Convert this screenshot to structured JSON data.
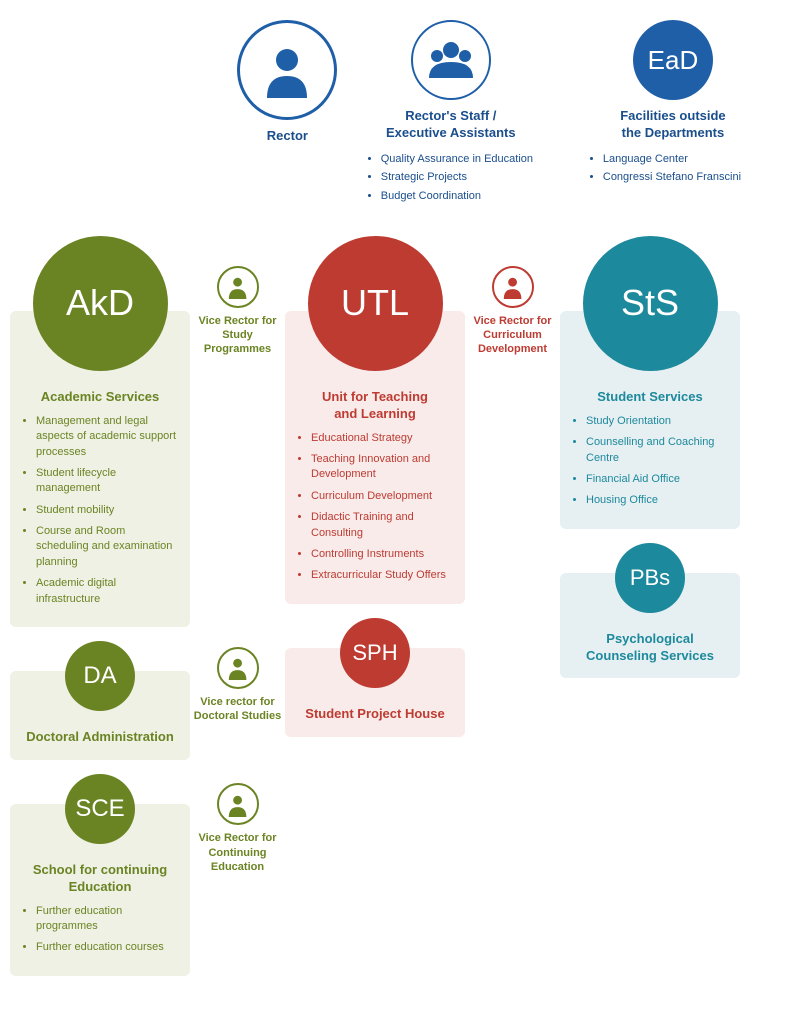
{
  "colors": {
    "blue": "#1f5fa8",
    "blue_dark": "#1a4e8c",
    "teal": "#1d899c",
    "teal_light": "#e6f0f2",
    "olive": "#6b8423",
    "olive_light": "#eef1e4",
    "red": "#be3b32",
    "red_light": "#f8ebea"
  },
  "top": {
    "rector": {
      "label": "Rector",
      "circle_size": 100,
      "border_width": 3
    },
    "staff": {
      "label": "Rector's Staff /\nExecutive Assistants",
      "circle_size": 80,
      "border_width": 2,
      "items": [
        "Quality Assurance in Education",
        "Strategic Projects",
        "Budget Coordination"
      ]
    },
    "ead": {
      "acronym": "EaD",
      "label": "Facilities outside\nthe Departments",
      "circle_size": 80,
      "font_size": 26,
      "items": [
        "Language Center",
        "Congressi Stefano Franscini"
      ]
    }
  },
  "columns": {
    "akd": {
      "main": {
        "acronym": "AkD",
        "circle_size": 135,
        "font_size": 36,
        "title": "Academic Services",
        "items": [
          "Management and legal aspects of academic support processes",
          "Student lifecycle management",
          "Student mobility",
          "Course and Room scheduling and examination planning",
          "Academic digital infrastructure"
        ]
      },
      "sub": [
        {
          "acronym": "DA",
          "circle_size": 70,
          "font_size": 24,
          "title": "Doctoral Administration",
          "items": []
        },
        {
          "acronym": "SCE",
          "circle_size": 70,
          "font_size": 24,
          "title": "School for continuing Education",
          "items": [
            "Further education programmes",
            "Further education courses"
          ]
        }
      ]
    },
    "vr_left": [
      {
        "label": "Vice Rector for\nStudy Programmes",
        "circle_size": 42
      },
      {
        "label": "Vice rector for\nDoctoral Studies",
        "circle_size": 42
      },
      {
        "label": "Vice Rector for\nContinuing\nEducation",
        "circle_size": 42
      }
    ],
    "utl": {
      "main": {
        "acronym": "UTL",
        "circle_size": 135,
        "font_size": 36,
        "title": "Unit for Teaching\nand Learning",
        "items": [
          "Educational Strategy",
          "Teaching Innovation and Development",
          "Curriculum Development",
          "Didactic Training and Consulting",
          "Controlling Instruments",
          "Extracurricular Study Offers"
        ]
      },
      "sub": [
        {
          "acronym": "SPH",
          "circle_size": 70,
          "font_size": 22,
          "title": "Student Project House",
          "items": []
        }
      ]
    },
    "vr_right": [
      {
        "label": "Vice Rector for\nCurriculum\nDevelopment",
        "circle_size": 42
      }
    ],
    "sts": {
      "main": {
        "acronym": "StS",
        "circle_size": 135,
        "font_size": 36,
        "title": "Student Services",
        "items": [
          "Study Orientation",
          "Counselling and Coaching Centre",
          "Financial Aid Office",
          "Housing Office"
        ]
      },
      "sub": [
        {
          "acronym": "PBs",
          "circle_size": 70,
          "font_size": 22,
          "title": "Psychological\nCounseling Services",
          "items": []
        }
      ]
    }
  }
}
